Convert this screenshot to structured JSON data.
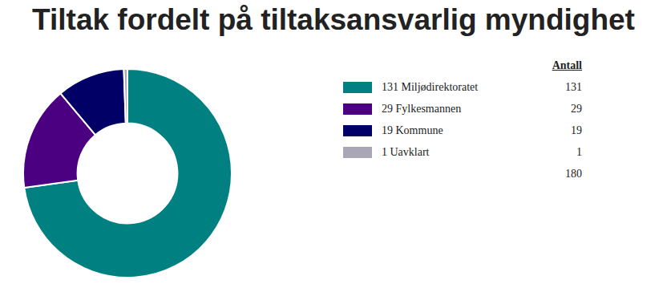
{
  "chart_data": {
    "type": "doughnut",
    "title": "Tiltak fordelt på tiltaksansvarlig myndighet",
    "categories": [
      "131 Miljødirektoratet",
      "29 Fylkesmannen",
      "19 Kommune",
      "1 Uavklart"
    ],
    "values": [
      131,
      29,
      19,
      1
    ],
    "colors": [
      "#008080",
      "#4b0082",
      "#000066",
      "#a9a7b5"
    ],
    "legend_header": "Antall",
    "total": 180
  }
}
